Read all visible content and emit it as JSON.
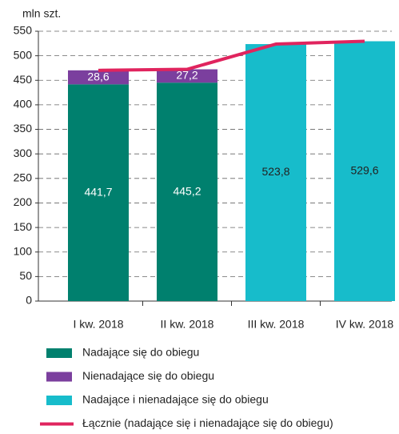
{
  "chart_data": {
    "type": "bar",
    "stacked": true,
    "y_label": "mln szt.",
    "categories": [
      "I kw. 2018",
      "II kw. 2018",
      "III kw. 2018",
      "IV kw. 2018"
    ],
    "series": [
      {
        "name": "Nadające się do obiegu",
        "color": "#00806e",
        "label_color": "#ffffff",
        "values": [
          441.7,
          445.2,
          null,
          null
        ],
        "value_labels": [
          "441,7",
          "445,2",
          null,
          null
        ]
      },
      {
        "name": "Nienadające się do obiegu",
        "color": "#7b3f9e",
        "label_color": "#ffffff",
        "values": [
          28.6,
          27.2,
          null,
          null
        ],
        "value_labels": [
          "28,6",
          "27,2",
          null,
          null
        ]
      },
      {
        "name": "Nadające i nienadające się do obiegu",
        "color": "#17bccb",
        "label_color": "#222222",
        "values": [
          null,
          null,
          523.8,
          529.6
        ],
        "value_labels": [
          null,
          null,
          "523,8",
          "529,6"
        ]
      },
      {
        "name": "Łącznie (nadające się i nienadające się do obiegu)",
        "type": "line",
        "color": "#e0245e",
        "values": [
          470.3,
          472.4,
          523.8,
          529.6
        ]
      }
    ],
    "ylim": [
      0,
      550
    ],
    "yticks": [
      0,
      50,
      100,
      150,
      200,
      250,
      300,
      350,
      400,
      450,
      500,
      550
    ],
    "grid": true
  }
}
